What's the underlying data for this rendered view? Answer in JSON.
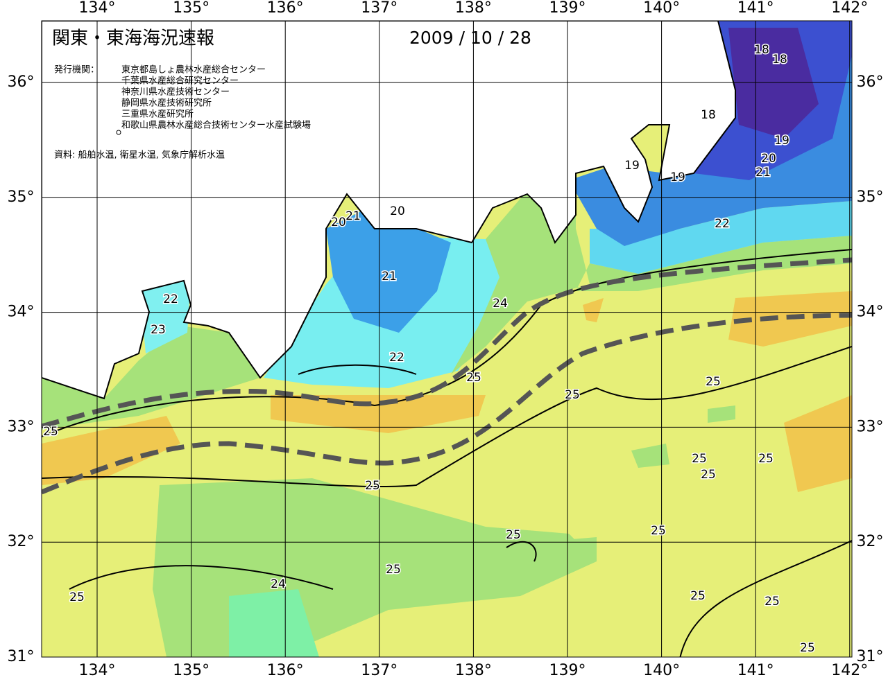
{
  "header": {
    "title": "関東・東海海況速報",
    "date": "2009 / 10 / 28",
    "publisher_label": "発行機関：",
    "organizations": [
      "東京都島しょ農林水産総合センター",
      "千葉県水産総合研究センター",
      "神奈川県水産技術センター",
      "静岡県水産技術研究所",
      "三重県水産研究所",
      "和歌山県農林水産総合技術センター水産試験場"
    ],
    "source": "資料: 船舶水温, 衛星水温, 気象庁解析水温"
  },
  "map": {
    "lon_ticks": [
      {
        "value": 134,
        "label": "134°"
      },
      {
        "value": 135,
        "label": "135°"
      },
      {
        "value": 136,
        "label": "136°"
      },
      {
        "value": 137,
        "label": "137°"
      },
      {
        "value": 138,
        "label": "138°"
      },
      {
        "value": 139,
        "label": "139°"
      },
      {
        "value": 140,
        "label": "140°"
      },
      {
        "value": 141,
        "label": "141°"
      },
      {
        "value": 142,
        "label": "142°"
      }
    ],
    "lat_ticks": [
      {
        "value": 31,
        "label": "31°"
      },
      {
        "value": 32,
        "label": "32°"
      },
      {
        "value": 33,
        "label": "33°"
      },
      {
        "value": 34,
        "label": "34°"
      },
      {
        "value": 35,
        "label": "35°"
      },
      {
        "value": 36,
        "label": "36°"
      }
    ],
    "contour_labels": [
      "18",
      "18",
      "18",
      "19",
      "19",
      "19",
      "20",
      "21",
      "22",
      "20",
      "20",
      "21",
      "21",
      "22",
      "23",
      "24",
      "22",
      "25",
      "25",
      "25",
      "25",
      "25",
      "25",
      "25",
      "25",
      "25",
      "25",
      "25",
      "24",
      "25",
      "25",
      "25",
      "25"
    ]
  }
}
